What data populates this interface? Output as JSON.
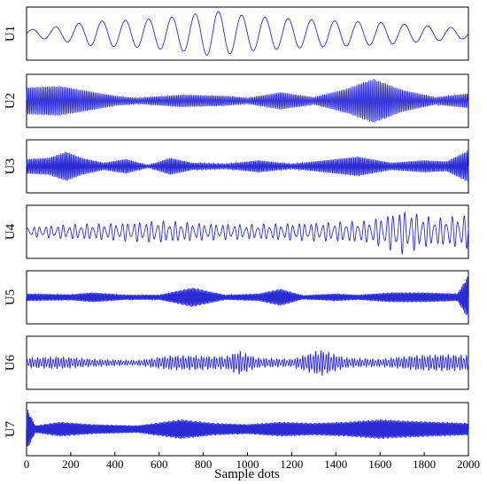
{
  "chart_data": {
    "type": "line",
    "title": "",
    "xlabel": "Sample dots",
    "xlim": [
      0,
      2000
    ],
    "x_ticks": [
      0,
      200,
      400,
      600,
      800,
      1000,
      1200,
      1400,
      1600,
      1800,
      2000
    ],
    "grid": false,
    "legend": "none",
    "line_color": "#2b2bd6",
    "series": [
      {
        "name": "U1",
        "ylim": [
          -1,
          1
        ],
        "components": [
          {
            "freq_cycles": 19
          }
        ],
        "envelope": [
          {
            "x": 0,
            "amp": 0.15
          },
          {
            "x": 120,
            "amp": 0.25
          },
          {
            "x": 300,
            "amp": 0.5
          },
          {
            "x": 500,
            "amp": 0.55
          },
          {
            "x": 700,
            "amp": 0.7
          },
          {
            "x": 850,
            "amp": 0.92
          },
          {
            "x": 1000,
            "amp": 0.7
          },
          {
            "x": 1300,
            "amp": 0.55
          },
          {
            "x": 1600,
            "amp": 0.45
          },
          {
            "x": 1800,
            "amp": 0.32
          },
          {
            "x": 2000,
            "amp": 0.2
          }
        ]
      },
      {
        "name": "U2",
        "ylim": [
          -1,
          1
        ],
        "components": [
          {
            "freq_cycles": 260
          }
        ],
        "envelope": [
          {
            "x": 0,
            "amp": 0.55
          },
          {
            "x": 150,
            "amp": 0.6
          },
          {
            "x": 250,
            "amp": 0.45
          },
          {
            "x": 400,
            "amp": 0.2
          },
          {
            "x": 500,
            "amp": 0.12
          },
          {
            "x": 700,
            "amp": 0.25
          },
          {
            "x": 900,
            "amp": 0.2
          },
          {
            "x": 1000,
            "amp": 0.12
          },
          {
            "x": 1150,
            "amp": 0.35
          },
          {
            "x": 1300,
            "amp": 0.15
          },
          {
            "x": 1450,
            "amp": 0.5
          },
          {
            "x": 1570,
            "amp": 0.9
          },
          {
            "x": 1700,
            "amp": 0.45
          },
          {
            "x": 1850,
            "amp": 0.15
          },
          {
            "x": 2000,
            "amp": 0.3
          }
        ]
      },
      {
        "name": "U3",
        "ylim": [
          -1,
          1
        ],
        "components": [
          {
            "freq_cycles": 300
          }
        ],
        "envelope": [
          {
            "x": 0,
            "amp": 0.3
          },
          {
            "x": 100,
            "amp": 0.35
          },
          {
            "x": 180,
            "amp": 0.6
          },
          {
            "x": 250,
            "amp": 0.35
          },
          {
            "x": 350,
            "amp": 0.15
          },
          {
            "x": 450,
            "amp": 0.3
          },
          {
            "x": 550,
            "amp": 0.05
          },
          {
            "x": 650,
            "amp": 0.35
          },
          {
            "x": 750,
            "amp": 0.15
          },
          {
            "x": 900,
            "amp": 0.1
          },
          {
            "x": 1050,
            "amp": 0.25
          },
          {
            "x": 1200,
            "amp": 0.1
          },
          {
            "x": 1350,
            "amp": 0.25
          },
          {
            "x": 1500,
            "amp": 0.4
          },
          {
            "x": 1650,
            "amp": 0.15
          },
          {
            "x": 1800,
            "amp": 0.25
          },
          {
            "x": 1900,
            "amp": 0.2
          },
          {
            "x": 2000,
            "amp": 0.65
          }
        ]
      },
      {
        "name": "U4",
        "ylim": [
          -1,
          1
        ],
        "components": [
          {
            "freq_cycles": 75
          },
          {
            "freq_cycles": 110,
            "weight": 0.35
          }
        ],
        "envelope": [
          {
            "x": 0,
            "amp": 0.2
          },
          {
            "x": 200,
            "amp": 0.3
          },
          {
            "x": 400,
            "amp": 0.35
          },
          {
            "x": 600,
            "amp": 0.45
          },
          {
            "x": 800,
            "amp": 0.35
          },
          {
            "x": 1000,
            "amp": 0.3
          },
          {
            "x": 1200,
            "amp": 0.35
          },
          {
            "x": 1400,
            "amp": 0.4
          },
          {
            "x": 1550,
            "amp": 0.45
          },
          {
            "x": 1700,
            "amp": 0.9
          },
          {
            "x": 1850,
            "amp": 0.55
          },
          {
            "x": 2000,
            "amp": 0.7
          }
        ]
      },
      {
        "name": "U5",
        "ylim": [
          -1,
          1
        ],
        "components": [
          {
            "freq_cycles": 380
          }
        ],
        "envelope": [
          {
            "x": 0,
            "amp": 0.15
          },
          {
            "x": 200,
            "amp": 0.12
          },
          {
            "x": 300,
            "amp": 0.2
          },
          {
            "x": 450,
            "amp": 0.1
          },
          {
            "x": 600,
            "amp": 0.1
          },
          {
            "x": 750,
            "amp": 0.4
          },
          {
            "x": 900,
            "amp": 0.1
          },
          {
            "x": 1050,
            "amp": 0.15
          },
          {
            "x": 1150,
            "amp": 0.35
          },
          {
            "x": 1250,
            "amp": 0.08
          },
          {
            "x": 1400,
            "amp": 0.15
          },
          {
            "x": 1500,
            "amp": 0.1
          },
          {
            "x": 1650,
            "amp": 0.2
          },
          {
            "x": 1800,
            "amp": 0.2
          },
          {
            "x": 1950,
            "amp": 0.15
          },
          {
            "x": 2000,
            "amp": 0.9
          }
        ]
      },
      {
        "name": "U6",
        "ylim": [
          -1,
          1
        ],
        "components": [
          {
            "freq_cycles": 170
          },
          {
            "freq_cycles": 240,
            "weight": 0.3
          }
        ],
        "envelope": [
          {
            "x": 0,
            "amp": 0.2
          },
          {
            "x": 150,
            "amp": 0.25
          },
          {
            "x": 300,
            "amp": 0.15
          },
          {
            "x": 500,
            "amp": 0.1
          },
          {
            "x": 650,
            "amp": 0.3
          },
          {
            "x": 750,
            "amp": 0.3
          },
          {
            "x": 900,
            "amp": 0.25
          },
          {
            "x": 960,
            "amp": 0.5
          },
          {
            "x": 1050,
            "amp": 0.2
          },
          {
            "x": 1200,
            "amp": 0.15
          },
          {
            "x": 1330,
            "amp": 0.55
          },
          {
            "x": 1450,
            "amp": 0.2
          },
          {
            "x": 1600,
            "amp": 0.15
          },
          {
            "x": 1750,
            "amp": 0.3
          },
          {
            "x": 1900,
            "amp": 0.35
          },
          {
            "x": 2000,
            "amp": 0.3
          }
        ]
      },
      {
        "name": "U7",
        "ylim": [
          -1,
          1
        ],
        "components": [
          {
            "freq_cycles": 420
          }
        ],
        "envelope": [
          {
            "x": 0,
            "amp": 0.9
          },
          {
            "x": 40,
            "amp": 0.15
          },
          {
            "x": 150,
            "amp": 0.3
          },
          {
            "x": 300,
            "amp": 0.2
          },
          {
            "x": 500,
            "amp": 0.15
          },
          {
            "x": 700,
            "amp": 0.4
          },
          {
            "x": 850,
            "amp": 0.25
          },
          {
            "x": 1000,
            "amp": 0.2
          },
          {
            "x": 1150,
            "amp": 0.3
          },
          {
            "x": 1300,
            "amp": 0.25
          },
          {
            "x": 1450,
            "amp": 0.3
          },
          {
            "x": 1600,
            "amp": 0.4
          },
          {
            "x": 1700,
            "amp": 0.35
          },
          {
            "x": 1850,
            "amp": 0.3
          },
          {
            "x": 2000,
            "amp": 0.25
          }
        ]
      }
    ]
  }
}
